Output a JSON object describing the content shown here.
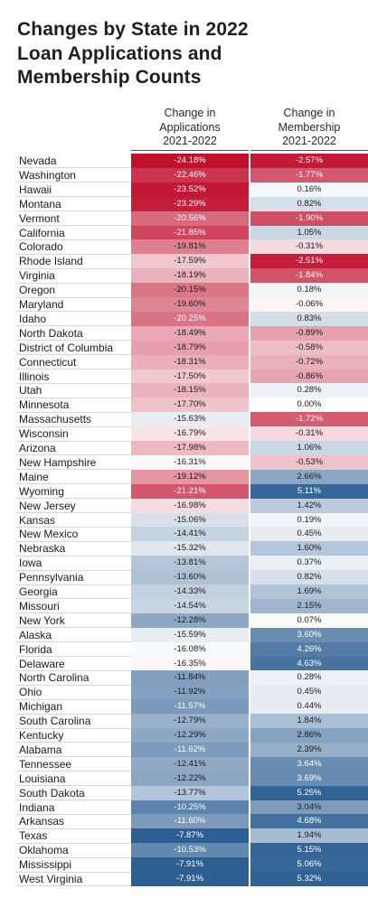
{
  "chart_data": {
    "type": "table",
    "title_lines": [
      "Changes by State in 2022",
      "Loan Applications and",
      "Membership Counts"
    ],
    "columns": [
      {
        "header_lines": [
          "Change in",
          "Applications",
          "2021-2022"
        ]
      },
      {
        "header_lines": [
          "Change in",
          "Membership",
          "2021-2022"
        ]
      }
    ],
    "colors": {
      "negative": "#c0102e",
      "positive": "#2d5f93",
      "neutral": "#ffffff"
    },
    "rows": [
      {
        "state": "Nevada",
        "applications": "-24.18%",
        "membership": "-2.57%"
      },
      {
        "state": "Washington",
        "applications": "-22.46%",
        "membership": "-1.77%"
      },
      {
        "state": "Hawaii",
        "applications": "-23.52%",
        "membership": "0.16%"
      },
      {
        "state": "Montana",
        "applications": "-23.29%",
        "membership": "0.82%"
      },
      {
        "state": "Vermont",
        "applications": "-20.56%",
        "membership": "-1.90%"
      },
      {
        "state": "California",
        "applications": "-21.85%",
        "membership": "1.05%"
      },
      {
        "state": "Colorado",
        "applications": "-19.81%",
        "membership": "-0.31%"
      },
      {
        "state": "Rhode Island",
        "applications": "-17.59%",
        "membership": "-2.51%"
      },
      {
        "state": "Virginia",
        "applications": "-18.19%",
        "membership": "-1.84%"
      },
      {
        "state": "Oregon",
        "applications": "-20.15%",
        "membership": "0.18%"
      },
      {
        "state": "Maryland",
        "applications": "-19.60%",
        "membership": "-0.06%"
      },
      {
        "state": "Idaho",
        "applications": "-20.25%",
        "membership": "0.83%"
      },
      {
        "state": "North Dakota",
        "applications": "-18.49%",
        "membership": "-0.89%"
      },
      {
        "state": "District of Columbia",
        "applications": "-18.79%",
        "membership": "-0.58%"
      },
      {
        "state": "Connecticut",
        "applications": "-18.31%",
        "membership": "-0.72%"
      },
      {
        "state": "Illinois",
        "applications": "-17.50%",
        "membership": "-0.86%"
      },
      {
        "state": "Utah",
        "applications": "-18.15%",
        "membership": "0.28%"
      },
      {
        "state": "Minnesota",
        "applications": "-17.70%",
        "membership": "0.00%"
      },
      {
        "state": "Massachusetts",
        "applications": "-15.63%",
        "membership": "-1.72%"
      },
      {
        "state": "Wisconsin",
        "applications": "-16.79%",
        "membership": "-0.31%"
      },
      {
        "state": "Arizona",
        "applications": "-17.98%",
        "membership": "1.06%"
      },
      {
        "state": "New Hampshire",
        "applications": "-16.31%",
        "membership": "-0.53%"
      },
      {
        "state": "Maine",
        "applications": "-19.12%",
        "membership": "2.66%"
      },
      {
        "state": "Wyoming",
        "applications": "-21.21%",
        "membership": "5.11%"
      },
      {
        "state": "New Jersey",
        "applications": "-16.98%",
        "membership": "1.42%"
      },
      {
        "state": "Kansas",
        "applications": "-15.06%",
        "membership": "0.19%"
      },
      {
        "state": "New Mexico",
        "applications": "-14.41%",
        "membership": "0.45%"
      },
      {
        "state": "Nebraska",
        "applications": "-15.32%",
        "membership": "1.60%"
      },
      {
        "state": "Iowa",
        "applications": "-13.81%",
        "membership": "0.37%"
      },
      {
        "state": "Pennsylvania",
        "applications": "-13.60%",
        "membership": "0.82%"
      },
      {
        "state": "Georgia",
        "applications": "-14.33%",
        "membership": "1.69%"
      },
      {
        "state": "Missouri",
        "applications": "-14.54%",
        "membership": "2.15%"
      },
      {
        "state": "New York",
        "applications": "-12.28%",
        "membership": "0.07%"
      },
      {
        "state": "Alaska",
        "applications": "-15.59%",
        "membership": "3.60%"
      },
      {
        "state": "Florida",
        "applications": "-16.08%",
        "membership": "4.26%"
      },
      {
        "state": "Delaware",
        "applications": "-16.35%",
        "membership": "4.63%"
      },
      {
        "state": "North Carolina",
        "applications": "-11.84%",
        "membership": "0.28%"
      },
      {
        "state": "Ohio",
        "applications": "-11.92%",
        "membership": "0.45%"
      },
      {
        "state": "Michigan",
        "applications": "-11.57%",
        "membership": "0.44%"
      },
      {
        "state": "South Carolina",
        "applications": "-12.79%",
        "membership": "1.84%"
      },
      {
        "state": "Kentucky",
        "applications": "-12.29%",
        "membership": "2.86%"
      },
      {
        "state": "Alabama",
        "applications": "-11.62%",
        "membership": "2.39%"
      },
      {
        "state": "Tennessee",
        "applications": "-12.41%",
        "membership": "3.64%"
      },
      {
        "state": "Louisiana",
        "applications": "-12.22%",
        "membership": "3.69%"
      },
      {
        "state": "South Dakota",
        "applications": "-13.77%",
        "membership": "5.25%"
      },
      {
        "state": "Indiana",
        "applications": "-10.25%",
        "membership": "3.04%"
      },
      {
        "state": "Arkansas",
        "applications": "-11.60%",
        "membership": "4.68%"
      },
      {
        "state": "Texas",
        "applications": "-7.87%",
        "membership": "1.94%"
      },
      {
        "state": "Oklahoma",
        "applications": "-10.53%",
        "membership": "5.15%"
      },
      {
        "state": "Mississippi",
        "applications": "-7.91%",
        "membership": "5.06%"
      },
      {
        "state": "West Virginia",
        "applications": "-7.91%",
        "membership": "5.32%"
      }
    ]
  }
}
